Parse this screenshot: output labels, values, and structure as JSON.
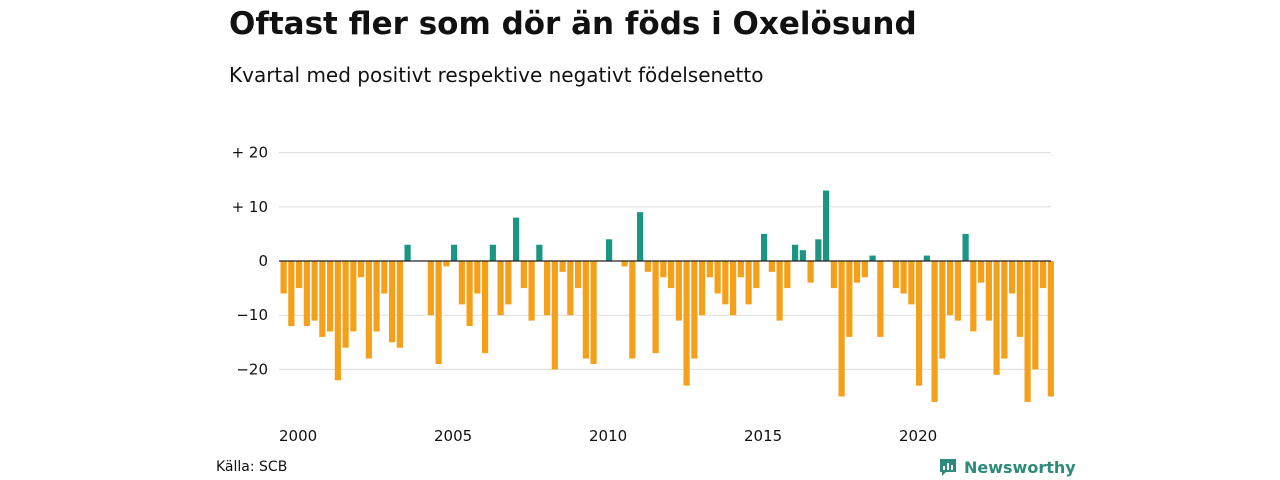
{
  "title": "Oftast fler som dör än föds i Oxelösund",
  "subtitle": "Kvartal med positivt respektive negativt födelsenetto",
  "source": "Källa: SCB",
  "brand": "Newsworthy",
  "colors": {
    "positive": "#1a9683",
    "negative": "#f5a01a",
    "grid": "#dddddd",
    "axis": "#222222"
  },
  "chart_data": {
    "type": "bar",
    "x_start_year": 2000,
    "periods_per_year": 4,
    "x_tick_labels": [
      "2000",
      "2005",
      "2010",
      "2015",
      "2020"
    ],
    "y_ticks": [
      20,
      10,
      0,
      -10,
      -20
    ],
    "y_tick_labels": [
      "+ 20",
      "+ 10",
      "0",
      "−10",
      "−20"
    ],
    "ylim": [
      -27,
      21
    ],
    "values": [
      -6,
      -12,
      -5,
      -12,
      -11,
      -14,
      -13,
      -22,
      -16,
      -13,
      -3,
      -18,
      -13,
      -6,
      -15,
      -16,
      3,
      0,
      0,
      -10,
      -19,
      -1,
      3,
      -8,
      -12,
      -6,
      -17,
      3,
      -10,
      -8,
      8,
      -5,
      -11,
      3,
      -10,
      -20,
      -2,
      -10,
      -5,
      -18,
      -19,
      0,
      4,
      0,
      -1,
      -18,
      9,
      -2,
      -17,
      -3,
      -5,
      -11,
      -23,
      -18,
      -10,
      -3,
      -6,
      -8,
      -10,
      -3,
      -8,
      -5,
      5,
      -2,
      -11,
      -5,
      3,
      2,
      -4,
      4,
      13,
      -5,
      -25,
      -14,
      -4,
      -3,
      1,
      -14,
      0,
      -5,
      -6,
      -8,
      -23,
      1,
      -26,
      -18,
      -10,
      -11,
      5,
      -13,
      -4,
      -11,
      -21,
      -18,
      -6,
      -14,
      -26,
      -20,
      -5,
      -25
    ]
  }
}
